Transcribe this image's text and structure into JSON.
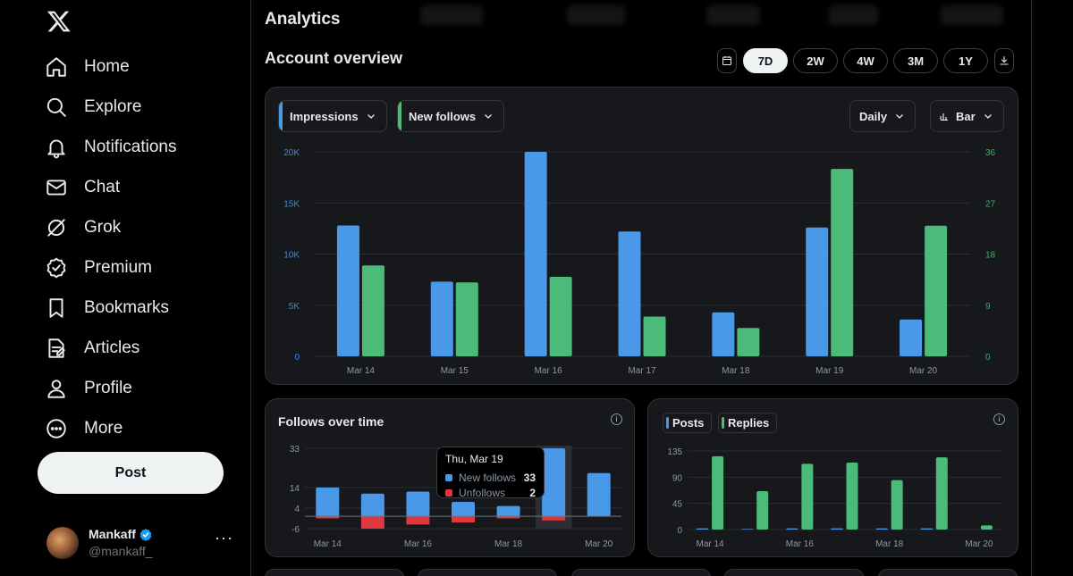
{
  "sidebar": {
    "items": [
      {
        "label": "Home",
        "icon": "home-icon"
      },
      {
        "label": "Explore",
        "icon": "search-icon"
      },
      {
        "label": "Notifications",
        "icon": "bell-icon"
      },
      {
        "label": "Chat",
        "icon": "mail-icon"
      },
      {
        "label": "Grok",
        "icon": "grok-icon"
      },
      {
        "label": "Premium",
        "icon": "verified-badge-icon"
      },
      {
        "label": "Bookmarks",
        "icon": "bookmark-icon"
      },
      {
        "label": "Articles",
        "icon": "article-icon"
      },
      {
        "label": "Profile",
        "icon": "person-icon"
      },
      {
        "label": "More",
        "icon": "more-circle-icon"
      }
    ],
    "post_label": "Post",
    "account": {
      "name": "Mankaff",
      "handle": "@mankaff_",
      "more": "···"
    }
  },
  "header": {
    "title": "Analytics",
    "section_title": "Account overview",
    "ranges": [
      "7D",
      "2W",
      "4W",
      "3M",
      "1Y"
    ],
    "active_range": "7D"
  },
  "colors": {
    "blue": "#4a99e9",
    "green": "#4cbb7a",
    "red": "#e0383e"
  },
  "overview": {
    "metric_left": "Impressions",
    "metric_right": "New follows",
    "interval": "Daily",
    "chart_kind": "Bar"
  },
  "follows_card": {
    "title": "Follows over time"
  },
  "tooltip": {
    "date": "Thu, Mar 19",
    "new_follows_label": "New follows",
    "new_follows_value": "33",
    "unfollows_label": "Unfollows",
    "unfollows_value": "2"
  },
  "posts_card": {
    "posts_label": "Posts",
    "replies_label": "Replies"
  },
  "chart_data": [
    {
      "type": "bar",
      "categories": [
        "Mar 14",
        "Mar 15",
        "Mar 16",
        "Mar 17",
        "Mar 18",
        "Mar 19",
        "Mar 20"
      ],
      "series": [
        {
          "name": "Impressions",
          "axis": "left",
          "values": [
            12800,
            7300,
            20000,
            12200,
            4300,
            12600,
            3600
          ]
        },
        {
          "name": "New follows",
          "axis": "right",
          "values": [
            16,
            13,
            14,
            7,
            5,
            33,
            23
          ]
        }
      ],
      "ylim_left": [
        0,
        20000
      ],
      "ylim_right": [
        0,
        36
      ],
      "yticks_left": [
        "0",
        "5K",
        "10K",
        "15K",
        "20K"
      ],
      "yticks_right": [
        "0",
        "9",
        "18",
        "27",
        "36"
      ],
      "grid": true
    },
    {
      "type": "bar",
      "title": "Follows over time",
      "categories": [
        "Mar 14",
        "Mar 15",
        "Mar 16",
        "Mar 17",
        "Mar 18",
        "Mar 19",
        "Mar 20"
      ],
      "xtick_labels": [
        "Mar 14",
        "Mar 16",
        "Mar 18",
        "Mar 20"
      ],
      "series": [
        {
          "name": "New follows",
          "values": [
            14,
            11,
            12,
            7,
            5,
            33,
            21
          ]
        },
        {
          "name": "Unfollows",
          "values": [
            -1,
            -6,
            -4,
            -3,
            -1,
            -2,
            0
          ]
        }
      ],
      "ylim": [
        -6,
        33
      ],
      "yticks": [
        "-6",
        "4",
        "14",
        "33"
      ],
      "highlight": "Mar 19"
    },
    {
      "type": "bar",
      "categories": [
        "Mar 14",
        "Mar 15",
        "Mar 16",
        "Mar 17",
        "Mar 18",
        "Mar 19",
        "Mar 20"
      ],
      "xtick_labels": [
        "Mar 14",
        "Mar 16",
        "Mar 18",
        "Mar 20"
      ],
      "series": [
        {
          "name": "Posts",
          "values": [
            2,
            1,
            2,
            2,
            2,
            2,
            0
          ]
        },
        {
          "name": "Replies",
          "values": [
            126,
            66,
            113,
            115,
            85,
            124,
            7
          ]
        }
      ],
      "ylim": [
        0,
        135
      ],
      "yticks": [
        "0",
        "45",
        "90",
        "135"
      ]
    }
  ]
}
